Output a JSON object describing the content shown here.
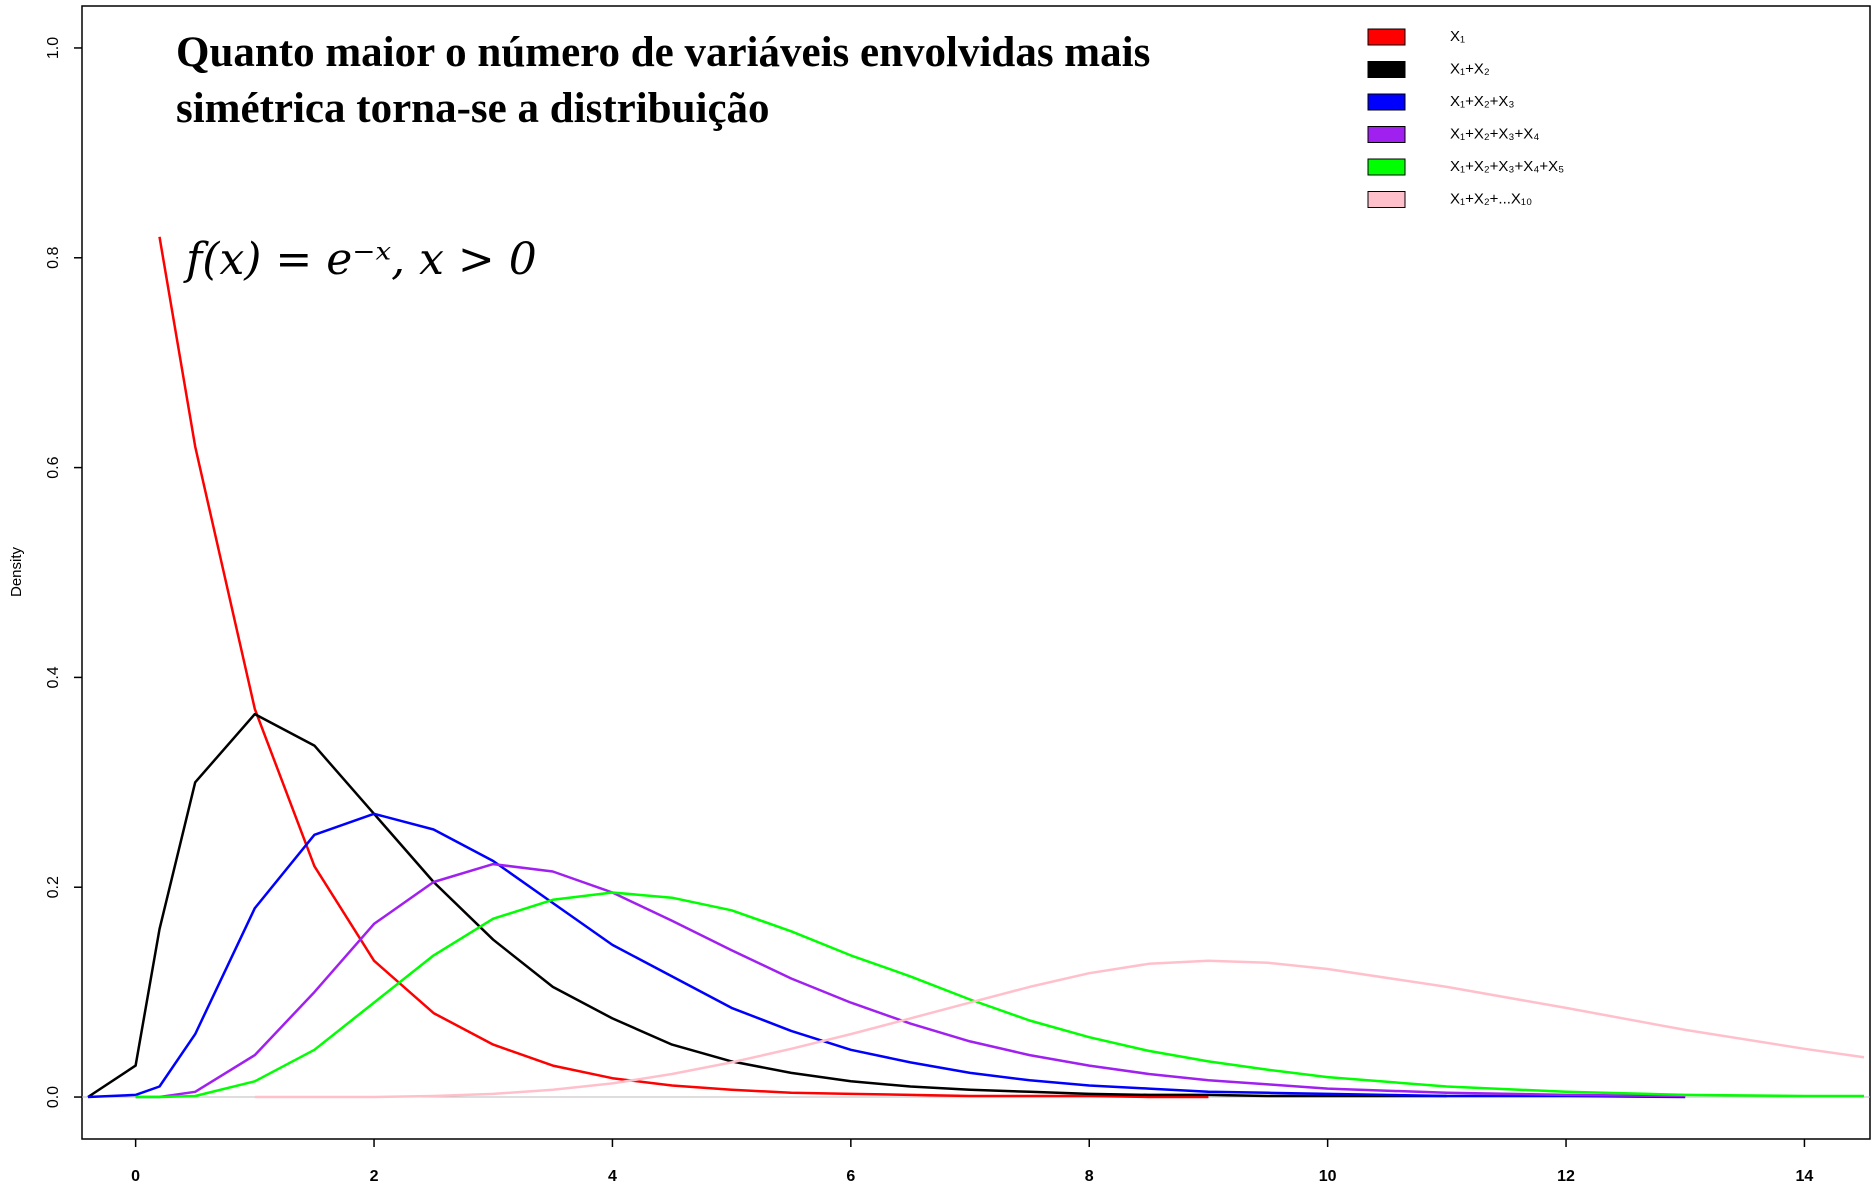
{
  "chart_data": {
    "type": "line",
    "title": [
      "Quanto maior o número de variáveis envolvidas mais",
      "simétrica torna-se a distribuição"
    ],
    "annotation": "f(x) = e⁻ˣ,  x > 0",
    "y_label": "Density",
    "x": [
      -0.4,
      0,
      0.2,
      0.5,
      1,
      1.5,
      2,
      2.5,
      3,
      3.5,
      4,
      4.5,
      5,
      5.5,
      6,
      6.5,
      7,
      7.5,
      8,
      8.5,
      9,
      9.5,
      10,
      11,
      12,
      13,
      14,
      14.5
    ],
    "xlim": [
      -0.45,
      14.55
    ],
    "xticks": [
      0,
      2,
      4,
      6,
      8,
      10,
      12,
      14
    ],
    "ylim": [
      -0.04,
      1.04
    ],
    "yticks": [
      {
        "value": 0,
        "label": "0.0"
      },
      0.2,
      0.4,
      0.6,
      0.8,
      {
        "value": 1,
        "label": "1.0"
      }
    ],
    "series": [
      {
        "name": "X₁",
        "color": "#ff0000",
        "values": [
          null,
          null,
          0.82,
          0.62,
          0.37,
          0.22,
          0.13,
          0.08,
          0.05,
          0.03,
          0.018,
          0.011,
          0.007,
          0.004,
          0.003,
          0.002,
          0.001,
          0.001,
          0.001,
          0,
          0,
          null,
          null,
          null,
          null,
          null,
          null,
          null
        ]
      },
      {
        "name": "X₁+X₂",
        "color": "#000000",
        "values": [
          0,
          0.03,
          0.16,
          0.3,
          0.365,
          0.335,
          0.27,
          0.205,
          0.15,
          0.105,
          0.075,
          0.05,
          0.034,
          0.023,
          0.015,
          0.01,
          0.007,
          0.005,
          0.003,
          0.002,
          0.002,
          0.001,
          0.001,
          0.001,
          null,
          null,
          null,
          null
        ]
      },
      {
        "name": "X₁+X₂+X₃",
        "color": "#0000ff",
        "values": [
          0,
          0.002,
          0.01,
          0.06,
          0.18,
          0.25,
          0.27,
          0.255,
          0.225,
          0.185,
          0.145,
          0.115,
          0.085,
          0.063,
          0.045,
          0.033,
          0.023,
          0.016,
          0.011,
          0.008,
          0.005,
          0.004,
          0.003,
          0.001,
          0.001,
          0,
          null,
          null
        ]
      },
      {
        "name": "X₁+X₂+X₃+X₄",
        "color": "#a020f0",
        "values": [
          null,
          0,
          0,
          0.005,
          0.04,
          0.1,
          0.165,
          0.205,
          0.222,
          0.215,
          0.195,
          0.168,
          0.14,
          0.113,
          0.09,
          0.07,
          0.053,
          0.04,
          0.03,
          0.022,
          0.016,
          0.012,
          0.008,
          0.004,
          0.002,
          0.001,
          null,
          null
        ]
      },
      {
        "name": "X₁+X₂+X₃+X₄+X₅",
        "color": "#00ff00",
        "values": [
          null,
          0,
          0,
          0.001,
          0.015,
          0.045,
          0.09,
          0.135,
          0.17,
          0.188,
          0.195,
          0.19,
          0.178,
          0.158,
          0.135,
          0.115,
          0.093,
          0.073,
          0.057,
          0.044,
          0.034,
          0.026,
          0.019,
          0.01,
          0.005,
          0.002,
          0.001,
          0.001
        ]
      },
      {
        "name": "X₁+X₂+...X₁₀",
        "color": "#ffc0cb",
        "values": [
          null,
          null,
          null,
          null,
          0,
          0,
          0,
          0.001,
          0.003,
          0.007,
          0.013,
          0.022,
          0.033,
          0.046,
          0.06,
          0.075,
          0.09,
          0.105,
          0.118,
          0.127,
          0.13,
          0.128,
          0.122,
          0.105,
          0.085,
          0.064,
          0.046,
          0.038
        ]
      }
    ]
  }
}
